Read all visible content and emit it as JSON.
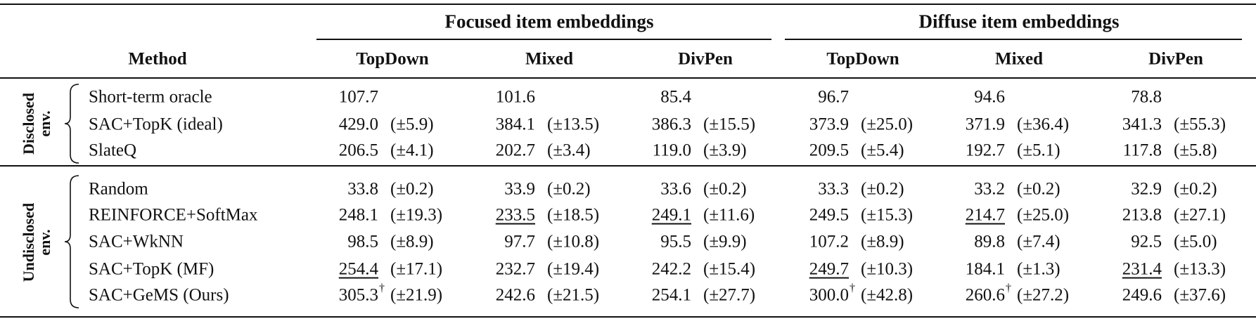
{
  "table": {
    "groups": [
      "Focused item embeddings",
      "Diffuse item embeddings"
    ],
    "columns": [
      "Method",
      "TopDown",
      "Mixed",
      "DivPen",
      "TopDown",
      "Mixed",
      "DivPen"
    ],
    "sections": [
      {
        "label": [
          "Disclosed",
          "env."
        ],
        "rows": [
          {
            "method": "Short-term oracle",
            "cells": [
              {
                "value": "107.7"
              },
              {
                "value": "101.6"
              },
              {
                "value": "85.4"
              },
              {
                "value": "96.7"
              },
              {
                "value": "94.6"
              },
              {
                "value": "78.8"
              }
            ]
          },
          {
            "method": "SAC+TopK (ideal)",
            "cells": [
              {
                "value": "429.0",
                "std": "(±5.9)"
              },
              {
                "value": "384.1",
                "std": "(±13.5)"
              },
              {
                "value": "386.3",
                "std": "(±15.5)"
              },
              {
                "value": "373.9",
                "std": "(±25.0)"
              },
              {
                "value": "371.9",
                "std": "(±36.4)"
              },
              {
                "value": "341.3",
                "std": "(±55.3)"
              }
            ]
          },
          {
            "method": "SlateQ",
            "cells": [
              {
                "value": "206.5",
                "std": "(±4.1)"
              },
              {
                "value": "202.7",
                "std": "(±3.4)"
              },
              {
                "value": "119.0",
                "std": "(±3.9)"
              },
              {
                "value": "209.5",
                "std": "(±5.4)"
              },
              {
                "value": "192.7",
                "std": "(±5.1)"
              },
              {
                "value": "117.8",
                "std": "(±5.8)"
              }
            ]
          }
        ]
      },
      {
        "label": [
          "Undisclosed",
          "env."
        ],
        "rows": [
          {
            "method": "Random",
            "cells": [
              {
                "value": "33.8",
                "std": "(±0.2)"
              },
              {
                "value": "33.9",
                "std": "(±0.2)"
              },
              {
                "value": "33.6",
                "std": "(±0.2)"
              },
              {
                "value": "33.3",
                "std": "(±0.2)"
              },
              {
                "value": "33.2",
                "std": "(±0.2)"
              },
              {
                "value": "32.9",
                "std": "(±0.2)"
              }
            ]
          },
          {
            "method": "REINFORCE+SoftMax",
            "cells": [
              {
                "value": "248.1",
                "std": "(±19.3)"
              },
              {
                "value": "233.5",
                "std": "(±18.5)",
                "underline": true
              },
              {
                "value": "249.1",
                "std": "(±11.6)",
                "underline": true
              },
              {
                "value": "249.5",
                "std": "(±15.3)"
              },
              {
                "value": "214.7",
                "std": "(±25.0)",
                "underline": true
              },
              {
                "value": "213.8",
                "std": "(±27.1)"
              }
            ]
          },
          {
            "method": "SAC+WkNN",
            "cells": [
              {
                "value": "98.5",
                "std": "(±8.9)"
              },
              {
                "value": "97.7",
                "std": "(±10.8)"
              },
              {
                "value": "95.5",
                "std": "(±9.9)"
              },
              {
                "value": "107.2",
                "std": "(±8.9)"
              },
              {
                "value": "89.8",
                "std": "(±7.4)"
              },
              {
                "value": "92.5",
                "std": "(±5.0)"
              }
            ]
          },
          {
            "method": "SAC+TopK (MF)",
            "cells": [
              {
                "value": "254.4",
                "std": "(±17.1)",
                "underline": true
              },
              {
                "value": "232.7",
                "std": "(±19.4)"
              },
              {
                "value": "242.2",
                "std": "(±15.4)"
              },
              {
                "value": "249.7",
                "std": "(±10.3)",
                "underline": true
              },
              {
                "value": "184.1",
                "std": "(±1.3)"
              },
              {
                "value": "231.4",
                "std": "(±13.3)",
                "underline": true
              }
            ]
          },
          {
            "method": "SAC+GeMS (Ours)",
            "cells": [
              {
                "value": "305.3",
                "dagger": "†",
                "std": "(±21.9)"
              },
              {
                "value": "242.6",
                "std": "(±21.5)"
              },
              {
                "value": "254.1",
                "std": "(±27.7)"
              },
              {
                "value": "300.0",
                "dagger": "†",
                "std": "(±42.8)"
              },
              {
                "value": "260.6",
                "dagger": "†",
                "std": "(±27.2)"
              },
              {
                "value": "249.6",
                "std": "(±37.6)"
              }
            ]
          }
        ]
      }
    ]
  }
}
